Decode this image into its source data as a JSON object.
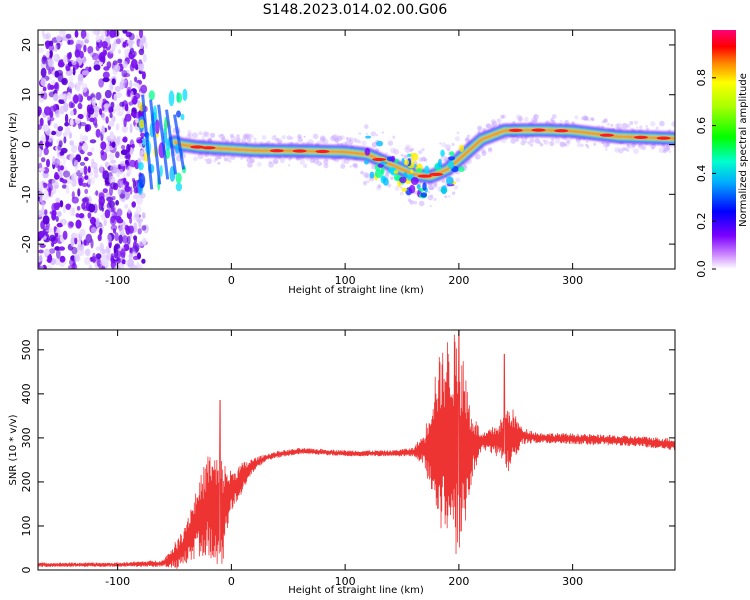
{
  "title": "S148.2023.014.02.00.G06",
  "chart_data": [
    {
      "type": "heatmap",
      "name": "spectrogram",
      "xlabel": "Height of straight line (km)",
      "ylabel": "Frequency (Hz)",
      "xlim": [
        -170,
        390
      ],
      "ylim": [
        -25,
        23
      ],
      "xticks": [
        -100,
        0,
        100,
        200,
        300
      ],
      "yticks": [
        -20,
        -10,
        0,
        10,
        20
      ],
      "colorbar": {
        "label": "Normalized spectral amplitude",
        "range": [
          0,
          1
        ],
        "ticks": [
          "0.0",
          "0.2",
          "0.4",
          "0.6",
          "0.8"
        ],
        "colormap": "rainbow (white/violet low to red/pink high)"
      },
      "ridge": {
        "x": [
          -65,
          -55,
          -45,
          -30,
          -10,
          20,
          60,
          100,
          120,
          140,
          160,
          175,
          190,
          205,
          220,
          240,
          270,
          300,
          340,
          390
        ],
        "y": [
          4,
          1,
          0,
          -0.5,
          -0.8,
          -1.2,
          -1.3,
          -1.5,
          -2,
          -4,
          -6,
          -6.5,
          -5,
          -2,
          1,
          2.8,
          2.9,
          2.7,
          1.6,
          1.2
        ]
      },
      "noise_region_x": [
        -170,
        -80
      ]
    },
    {
      "type": "line",
      "name": "snr",
      "xlabel": "Height of straight line (km)",
      "ylabel": "SNR (10 * v/v)",
      "xlim": [
        -170,
        390
      ],
      "ylim": [
        0,
        545
      ],
      "xticks": [
        -100,
        0,
        100,
        200,
        300
      ],
      "yticks": [
        0,
        100,
        200,
        300,
        400,
        500
      ],
      "color": "#ee3333",
      "envelope": {
        "x": [
          -170,
          -100,
          -60,
          -45,
          -30,
          -20,
          -10,
          0,
          10,
          20,
          30,
          40,
          60,
          80,
          100,
          120,
          140,
          160,
          170,
          180,
          190,
          195,
          200,
          205,
          210,
          220,
          235,
          245,
          255,
          270,
          300,
          330,
          360,
          390
        ],
        "mean": [
          12,
          12,
          15,
          40,
          110,
          150,
          120,
          180,
          210,
          240,
          255,
          262,
          270,
          268,
          265,
          265,
          265,
          268,
          275,
          290,
          300,
          290,
          280,
          260,
          280,
          290,
          295,
          300,
          305,
          300,
          298,
          295,
          292,
          285
        ],
        "amp": [
          5,
          5,
          8,
          40,
          80,
          120,
          140,
          45,
          35,
          15,
          8,
          8,
          7,
          7,
          7,
          7,
          7,
          10,
          40,
          180,
          230,
          250,
          250,
          220,
          100,
          18,
          40,
          80,
          20,
          12,
          12,
          12,
          12,
          14
        ]
      },
      "peaks": [
        {
          "x": -10,
          "y": 385
        },
        {
          "x": 200,
          "y": 545
        },
        {
          "x": 240,
          "y": 490
        }
      ]
    }
  ]
}
